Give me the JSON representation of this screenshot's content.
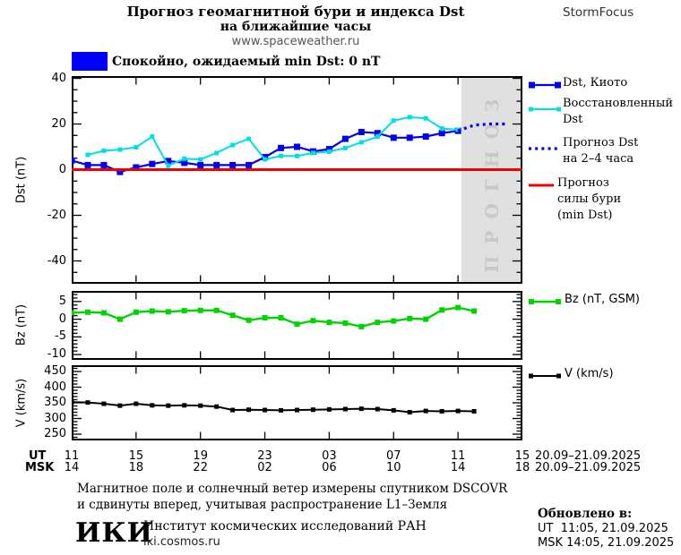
{
  "header": {
    "title_line1": "Прогноз геомагнитной бури и индекса Dst",
    "title_line2": "на ближайшие часы",
    "title_line3": "www.spaceweather.ru",
    "brand": "StormFocus"
  },
  "status_legend": {
    "text": "Спокойно, ожидаемый min Dst: 0 nT",
    "box_color": "#0000ff"
  },
  "legend": {
    "dst_kyoto": "Dst, Киото",
    "recovered_line1": "Восстановленный",
    "recovered_line2": "Dst",
    "forecast_line1": "Прогноз Dst",
    "forecast_line2": "на 2–4 часа",
    "storm_line1": "Прогноз",
    "storm_line2": "силы бури",
    "storm_line3": "(min Dst)",
    "bz": "Bz (nT, GSM)",
    "v": "V (km/s)"
  },
  "xaxis": {
    "ut_prefix": "UT",
    "msk_prefix": "MSK",
    "ut_ticks": [
      "11",
      "15",
      "19",
      "23",
      "03",
      "07",
      "11",
      "15"
    ],
    "msk_ticks": [
      "14",
      "18",
      "22",
      "02",
      "06",
      "10",
      "14",
      "18"
    ],
    "ut_date_range": "20.09–21.09.2025",
    "msk_date_range": "20.09–21.09.2025"
  },
  "footer": {
    "footnote_line1": "Магнитное поле и солнечный ветер измерены спутником DSCOVR",
    "footnote_line2": "и сдвинуты вперед, учитывая распространение L1–Земля",
    "logo_text": "ИКИ",
    "institute_name": "Институт космических исследований РАН",
    "institute_site": "iki.cosmos.ru",
    "updated_header": "Обновлено в:",
    "updated_ut": "UT  11:05, 21.09.2025",
    "updated_msk": "MSK 14:05, 21.09.2025"
  },
  "chart_data": [
    {
      "type": "line",
      "name": "dst-panel",
      "title": "",
      "xlabel": "",
      "ylabel": "Dst (nT)",
      "ylim": [
        -50,
        41
      ],
      "yticks": [
        40,
        20,
        0,
        -20,
        -40
      ],
      "x_hours_range": [
        0,
        28
      ],
      "x_major_step_hours": 4,
      "grid": false,
      "legend_position": "right",
      "forecast_band": {
        "start_hour": 24.2,
        "end_hour": 28,
        "label": "ПРОГНОЗ",
        "fill": "#e0e0e0",
        "label_color": "#c8c8c8"
      },
      "series": [
        {
          "key": "dst_kyoto",
          "name": "Dst, Киото",
          "color": "#0000ee",
          "marker": "square",
          "start_hour": 0,
          "values": [
            4,
            2,
            2,
            -1,
            1,
            2.5,
            3.8,
            3,
            2,
            2,
            2,
            2,
            5.5,
            9.5,
            10,
            8,
            9,
            13.5,
            16.5,
            16,
            14,
            14,
            14.5,
            16,
            17
          ]
        },
        {
          "key": "dst_recovered",
          "name": "Восстановленный Dst",
          "color": "#00e0e0",
          "marker": "square",
          "start_hour": 1,
          "values": [
            6.5,
            8.3,
            8.8,
            9.8,
            14.5,
            1.7,
            4.8,
            4.5,
            7.3,
            10.8,
            13.5,
            4.5,
            6,
            6,
            7.3,
            7.9,
            9.5,
            12,
            14.5,
            21.5,
            23,
            22.5,
            18,
            17.5
          ]
        },
        {
          "key": "dst_forecast",
          "name": "Прогноз Dst на 2–4 часа",
          "color": "#0000ee",
          "style": "dotted",
          "marker": "none",
          "start_hour": 24,
          "values": [
            17,
            19.5,
            20,
            20
          ]
        },
        {
          "key": "storm_level_line",
          "name": "Прогноз силы бури (min Dst)",
          "color": "#ee0000",
          "style": "solid",
          "marker": "none",
          "x": [
            0,
            28
          ],
          "values": [
            0,
            0
          ]
        }
      ]
    },
    {
      "type": "line",
      "name": "bz-panel",
      "title": "",
      "xlabel": "",
      "ylabel": "Bz (nT)",
      "ylim": [
        -11.5,
        8
      ],
      "yticks": [
        5,
        0,
        -5,
        -10
      ],
      "x_hours_range": [
        0,
        28
      ],
      "x_major_step_hours": 4,
      "grid": false,
      "series": [
        {
          "key": "bz_gsm",
          "name": "Bz (nT, GSM)",
          "color": "#00d400",
          "marker": "square",
          "start_hour": 0,
          "values": [
            1.8,
            2,
            1.8,
            0,
            2,
            2.3,
            2.1,
            2.4,
            2.5,
            2.5,
            1.1,
            -0.3,
            0.4,
            0.4,
            -1.4,
            -0.4,
            -0.9,
            -1.1,
            -2.1,
            -0.9,
            -0.5,
            0.2,
            0,
            2.6,
            3.3,
            2.3
          ]
        }
      ]
    },
    {
      "type": "line",
      "name": "v-panel",
      "title": "",
      "xlabel": "",
      "ylabel": "V (km/s)",
      "ylim": [
        230,
        470
      ],
      "yticks": [
        450,
        400,
        350,
        300,
        250
      ],
      "x_hours_range": [
        0,
        28
      ],
      "x_major_step_hours": 4,
      "grid": false,
      "series": [
        {
          "key": "v_speed",
          "name": "V (km/s)",
          "color": "#000000",
          "marker": "square",
          "start_hour": 0,
          "values": [
            352,
            351,
            347,
            341,
            347,
            342,
            341,
            342,
            341,
            338,
            327,
            328,
            327,
            326,
            327,
            328,
            329,
            330,
            331,
            330,
            326,
            320,
            324,
            323,
            324,
            323
          ]
        }
      ]
    }
  ]
}
